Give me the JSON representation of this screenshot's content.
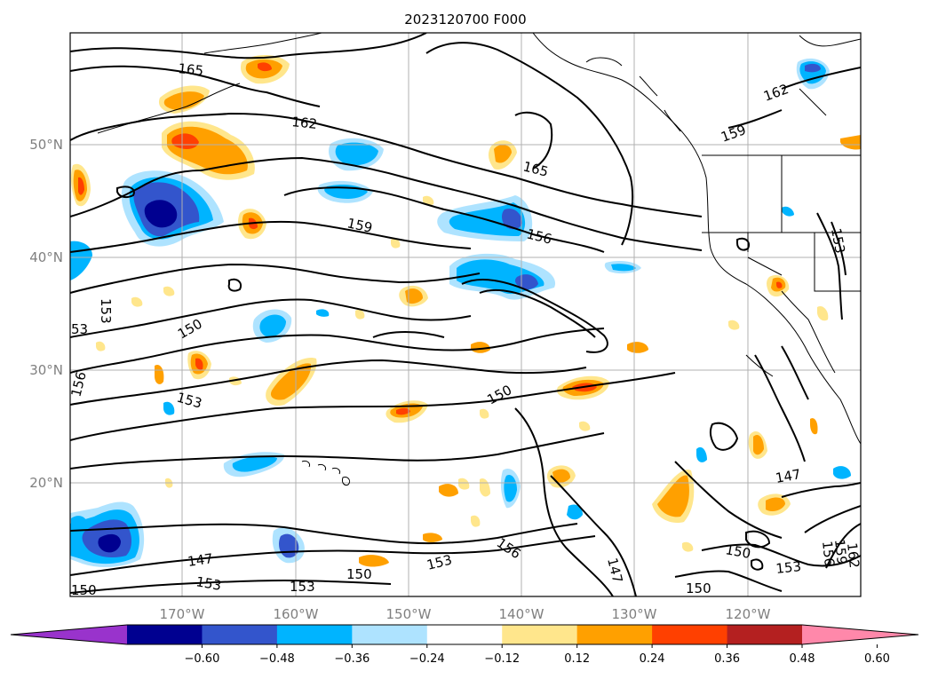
{
  "title": "2023120700 F000",
  "map": {
    "lat_ticks": [
      "50°N",
      "40°N",
      "30°N",
      "20°N"
    ],
    "lon_ticks": [
      "170°W",
      "160°W",
      "150°W",
      "140°W",
      "130°W",
      "120°W"
    ],
    "grid": true,
    "contour_labels": [
      {
        "text": "165"
      },
      {
        "text": "162"
      },
      {
        "text": "165"
      },
      {
        "text": "162"
      },
      {
        "text": "159"
      },
      {
        "text": "159"
      },
      {
        "text": "156"
      },
      {
        "text": "153"
      },
      {
        "text": "153"
      },
      {
        "text": "150"
      },
      {
        "text": "53"
      },
      {
        "text": "156"
      },
      {
        "text": "153"
      },
      {
        "text": "150"
      },
      {
        "text": "147"
      },
      {
        "text": "147"
      },
      {
        "text": "153"
      },
      {
        "text": "153"
      },
      {
        "text": "150"
      },
      {
        "text": "153"
      },
      {
        "text": "156"
      },
      {
        "text": "147"
      },
      {
        "text": "150"
      },
      {
        "text": "150"
      },
      {
        "text": "153"
      },
      {
        "text": "150"
      },
      {
        "text": "156"
      },
      {
        "text": "159"
      },
      {
        "text": "162"
      }
    ]
  },
  "colorbar": {
    "ticks": [
      "−0.60",
      "−0.48",
      "−0.36",
      "−0.24",
      "−0.12",
      "0.12",
      "0.24",
      "0.36",
      "0.48",
      "0.60"
    ],
    "colors": [
      "#9933cc",
      "#000090",
      "#3355cc",
      "#00b4ff",
      "#aee3ff",
      "#ffffff",
      "#ffe68c",
      "#ffa000",
      "#ff4000",
      "#b42020",
      "#ff88aa"
    ],
    "extend": "both"
  },
  "fill_colors": {
    "light_yellow": "#ffe68c",
    "orange": "#ffa000",
    "red_orange": "#ff4000",
    "dark_red": "#b42020",
    "light_blue": "#aee3ff",
    "cyan": "#00b4ff",
    "mid_blue": "#3355cc",
    "navy": "#000090"
  }
}
